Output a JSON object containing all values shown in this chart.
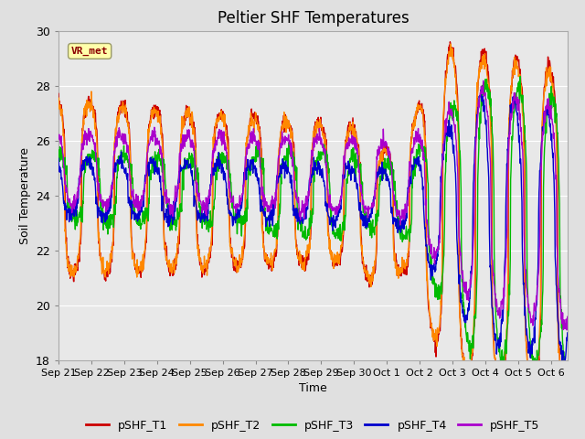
{
  "title": "Peltier SHF Temperatures",
  "ylabel": "Soil Temperature",
  "xlabel": "Time",
  "annotation": "VR_met",
  "ylim": [
    18,
    30
  ],
  "yticks": [
    18,
    20,
    22,
    24,
    26,
    28,
    30
  ],
  "xtick_labels": [
    "Sep 21",
    "Sep 22",
    "Sep 23",
    "Sep 24",
    "Sep 25",
    "Sep 26",
    "Sep 27",
    "Sep 28",
    "Sep 29",
    "Sep 30",
    "Oct 1",
    "Oct 2",
    "Oct 3",
    "Oct 4",
    "Oct 5",
    "Oct 6"
  ],
  "series_colors": {
    "pSHF_T1": "#cc0000",
    "pSHF_T2": "#ff8800",
    "pSHF_T3": "#00bb00",
    "pSHF_T4": "#0000cc",
    "pSHF_T5": "#aa00cc"
  },
  "legend_labels": [
    "pSHF_T1",
    "pSHF_T2",
    "pSHF_T3",
    "pSHF_T4",
    "pSHF_T5"
  ],
  "background_color": "#e0e0e0",
  "plot_bg_color": "#e8e8e8",
  "grid_color": "#ffffff",
  "title_fontsize": 12,
  "axis_fontsize": 9,
  "legend_fontsize": 9,
  "n_days": 15.5,
  "pts_per_day": 96
}
